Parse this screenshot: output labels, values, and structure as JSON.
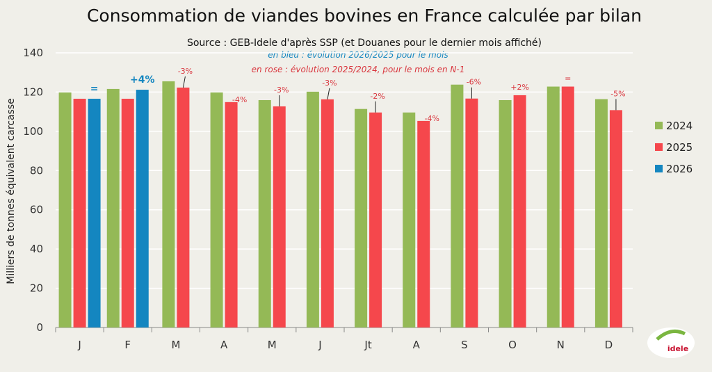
{
  "chart_data": {
    "type": "bar",
    "title": "Consommation de viandes bovines en France calculée par bilan",
    "subtitle": "Source : GEB-Idele d'après SSP (et Douanes pour le dernier mois affiché)",
    "notes": [
      "en bleu : évolution 2026/2025 pour le mois",
      "en rose : évolution 2025/2024, pour le mois en N-1"
    ],
    "ylabel": "Milliers de tonnes équivalent carcasse",
    "xlabel": "",
    "ylim": [
      0,
      140
    ],
    "yticks": [
      0,
      20,
      40,
      60,
      80,
      100,
      120,
      140
    ],
    "grid": true,
    "legend_placement": "right",
    "categories": [
      "J",
      "F",
      "M",
      "A",
      "M",
      "J",
      "Jt",
      "A",
      "S",
      "O",
      "N",
      "D"
    ],
    "series": [
      {
        "name": "2024",
        "color": "#94b956",
        "values": [
          119.8,
          121.6,
          125.5,
          119.8,
          115.9,
          120.2,
          111.4,
          109.6,
          123.8,
          115.9,
          122.8,
          116.4
        ]
      },
      {
        "name": "2025",
        "color": "#f5474c",
        "values": [
          116.6,
          116.6,
          122.3,
          114.9,
          112.7,
          116.3,
          109.6,
          105.3,
          116.7,
          118.4,
          122.8,
          110.8
        ]
      },
      {
        "name": "2026",
        "color": "#1486c0",
        "values": [
          116.6,
          121.2,
          null,
          null,
          null,
          null,
          null,
          null,
          null,
          null,
          null,
          null
        ]
      }
    ],
    "annotations_2026": [
      "=",
      "+4%"
    ],
    "annotations_2025": [
      "-3%",
      "-4%",
      "-3%",
      "-3%",
      "-2%",
      "-4%",
      "-6%",
      "+2%",
      "=",
      "-5%"
    ],
    "logo_text": "idele"
  }
}
